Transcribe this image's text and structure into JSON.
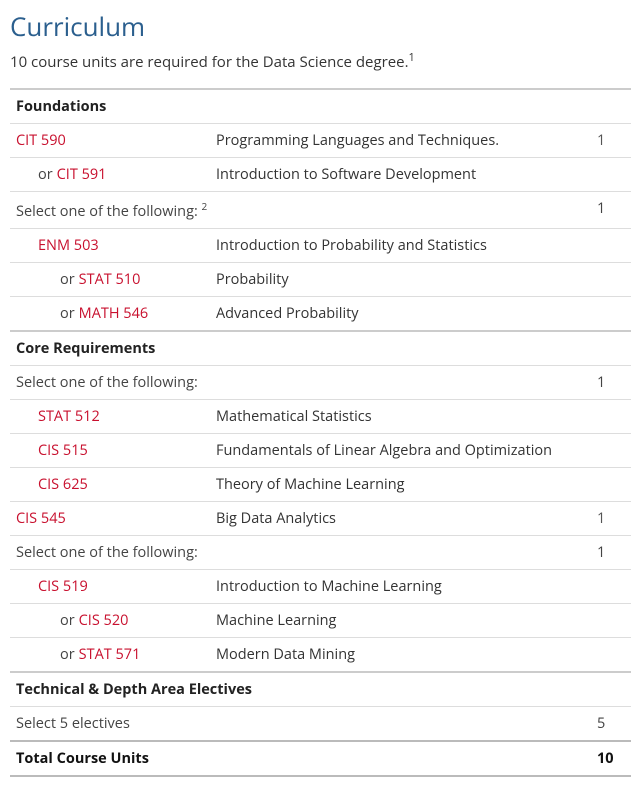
{
  "colors": {
    "title": "#2b5f8e",
    "link": "#c8102e",
    "text": "#333333",
    "muted": "#555555",
    "border": "#dddddd",
    "section_border": "#cccccc"
  },
  "page": {
    "title": "Curriculum",
    "intro": "10 course units are required for the Data Science degree.",
    "intro_sup": "1"
  },
  "labels": {
    "or": "or",
    "total": "Total Course Units",
    "total_units": "10"
  },
  "sections": [
    {
      "heading": "Foundations",
      "rows": [
        {
          "type": "course",
          "code": "CIT 590",
          "title": "Programming Languages and Techniques.",
          "units": "1",
          "indent": 0,
          "alternatives": [
            {
              "code": "CIT 591",
              "title": "Introduction to Software Development"
            }
          ]
        },
        {
          "type": "select",
          "text": "Select one of the following:",
          "sup": "2",
          "units": "1"
        },
        {
          "type": "course",
          "code": "ENM 503",
          "title": "Introduction to Probability and Statistics",
          "units": "",
          "indent": 1,
          "alternatives": [
            {
              "code": "STAT 510",
              "title": "Probability"
            },
            {
              "code": "MATH 546",
              "title": "Advanced Probability"
            }
          ]
        }
      ]
    },
    {
      "heading": "Core Requirements",
      "rows": [
        {
          "type": "select",
          "text": "Select one of the following:",
          "sup": "",
          "units": "1"
        },
        {
          "type": "course",
          "code": "STAT 512",
          "title": "Mathematical Statistics",
          "units": "",
          "indent": 1,
          "alternatives": []
        },
        {
          "type": "course",
          "code": "CIS 515",
          "title": "Fundamentals of Linear Algebra and Optimization",
          "units": "",
          "indent": 1,
          "alternatives": []
        },
        {
          "type": "course",
          "code": "CIS 625",
          "title": "Theory of Machine Learning",
          "units": "",
          "indent": 1,
          "alternatives": []
        },
        {
          "type": "course",
          "code": "CIS 545",
          "title": "Big Data Analytics",
          "units": "1",
          "indent": 0,
          "alternatives": []
        },
        {
          "type": "select",
          "text": "Select one of the following:",
          "sup": "",
          "units": "1"
        },
        {
          "type": "course",
          "code": "CIS 519",
          "title": "Introduction to Machine Learning",
          "units": "",
          "indent": 1,
          "alternatives": [
            {
              "code": "CIS 520",
              "title": "Machine Learning"
            },
            {
              "code": "STAT 571",
              "title": "Modern Data Mining"
            }
          ]
        }
      ]
    },
    {
      "heading": "Technical & Depth Area Electives",
      "rows": [
        {
          "type": "select",
          "text": "Select 5 electives",
          "sup": "",
          "units": "5"
        }
      ]
    }
  ]
}
